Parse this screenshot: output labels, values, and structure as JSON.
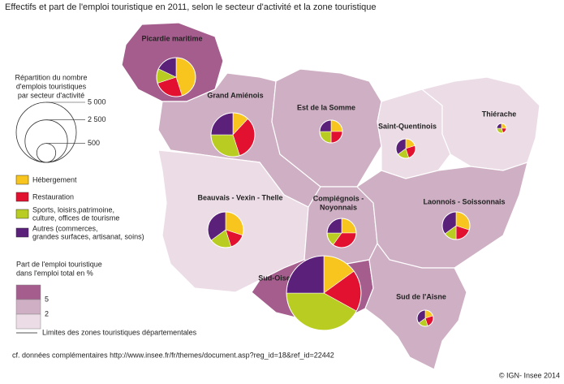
{
  "title": "Effectifs et part de l'emploi touristique en 2011, selon le secteur d'activité et la zone touristique",
  "size_legend": {
    "title_lines": [
      "Répartition du nombre",
      "d'emplois touristiques",
      "par secteur d'activité"
    ],
    "levels": [
      {
        "value": 5000,
        "label": "5 000"
      },
      {
        "value": 2500,
        "label": "2 500"
      },
      500
    ]
  },
  "sectors": [
    {
      "lines": [
        "Hébergement"
      ],
      "color": "#f7c51d"
    },
    {
      "lines": [
        "Restauration"
      ],
      "color": "#e2112f"
    },
    {
      "lines": [
        "Sports, loisirs,patrimoine,",
        "culture, offices de tourisme"
      ],
      "color": "#b9cc22"
    },
    {
      "lines": [
        "Autres (commerces,",
        "grandes surfaces, artisanat, soins)"
      ],
      "color": "#5b207a"
    }
  ],
  "share_legend": {
    "title_lines": [
      "Part de l'emploi touristique",
      "dans l'emploi total en %"
    ],
    "thresholds": [
      5,
      2
    ],
    "colors": [
      "#a45d8c",
      "#cfafc4",
      "#ecdce6"
    ]
  },
  "boundary_label": "Limites des zones touristiques départementales",
  "zones": [
    {
      "label": [
        "Picardie maritime"
      ],
      "share": 6,
      "total": 2100,
      "sectors": [
        45,
        25,
        12,
        18
      ]
    },
    {
      "label": [
        "Grand Amiénois"
      ],
      "share": 3.5,
      "total": 2660,
      "sectors": [
        12,
        33,
        30,
        25
      ]
    },
    {
      "label": [
        "Est de la Somme"
      ],
      "share": 3,
      "total": 720,
      "sectors": [
        25,
        25,
        25,
        25
      ]
    },
    {
      "label": [
        "Saint-Quentinois"
      ],
      "share": 1.5,
      "total": 530,
      "sectors": [
        20,
        25,
        20,
        35
      ]
    },
    {
      "label": [
        "Thiérache"
      ],
      "share": 1.5,
      "total": 130,
      "sectors": [
        25,
        20,
        30,
        25
      ]
    },
    {
      "label": [
        "Beauvais - Vexin - Thelle"
      ],
      "share": 1.8,
      "total": 1770,
      "sectors": [
        30,
        15,
        20,
        35
      ]
    },
    {
      "label": [
        "Compiégnois -",
        "Noyonnais"
      ],
      "share": 3,
      "total": 1180,
      "sectors": [
        25,
        35,
        15,
        25
      ]
    },
    {
      "label": [
        "Laonnois - Soissonnais"
      ],
      "share": 3,
      "total": 1060,
      "sectors": [
        30,
        20,
        15,
        35
      ]
    },
    {
      "label": [
        "Sud-Oise"
      ],
      "share": 6,
      "total": 7700,
      "sectors": [
        15,
        18,
        42,
        25
      ]
    },
    {
      "label": [
        "Sud de l'Aisne"
      ],
      "share": 3,
      "total": 365,
      "sectors": [
        20,
        25,
        20,
        35
      ]
    }
  ],
  "source": "cf. données complémentaires http://www.insee.fr/fr/themes/document.asp?reg_id=18&ref_id=22442",
  "credit": "© IGN- Insee 2014"
}
